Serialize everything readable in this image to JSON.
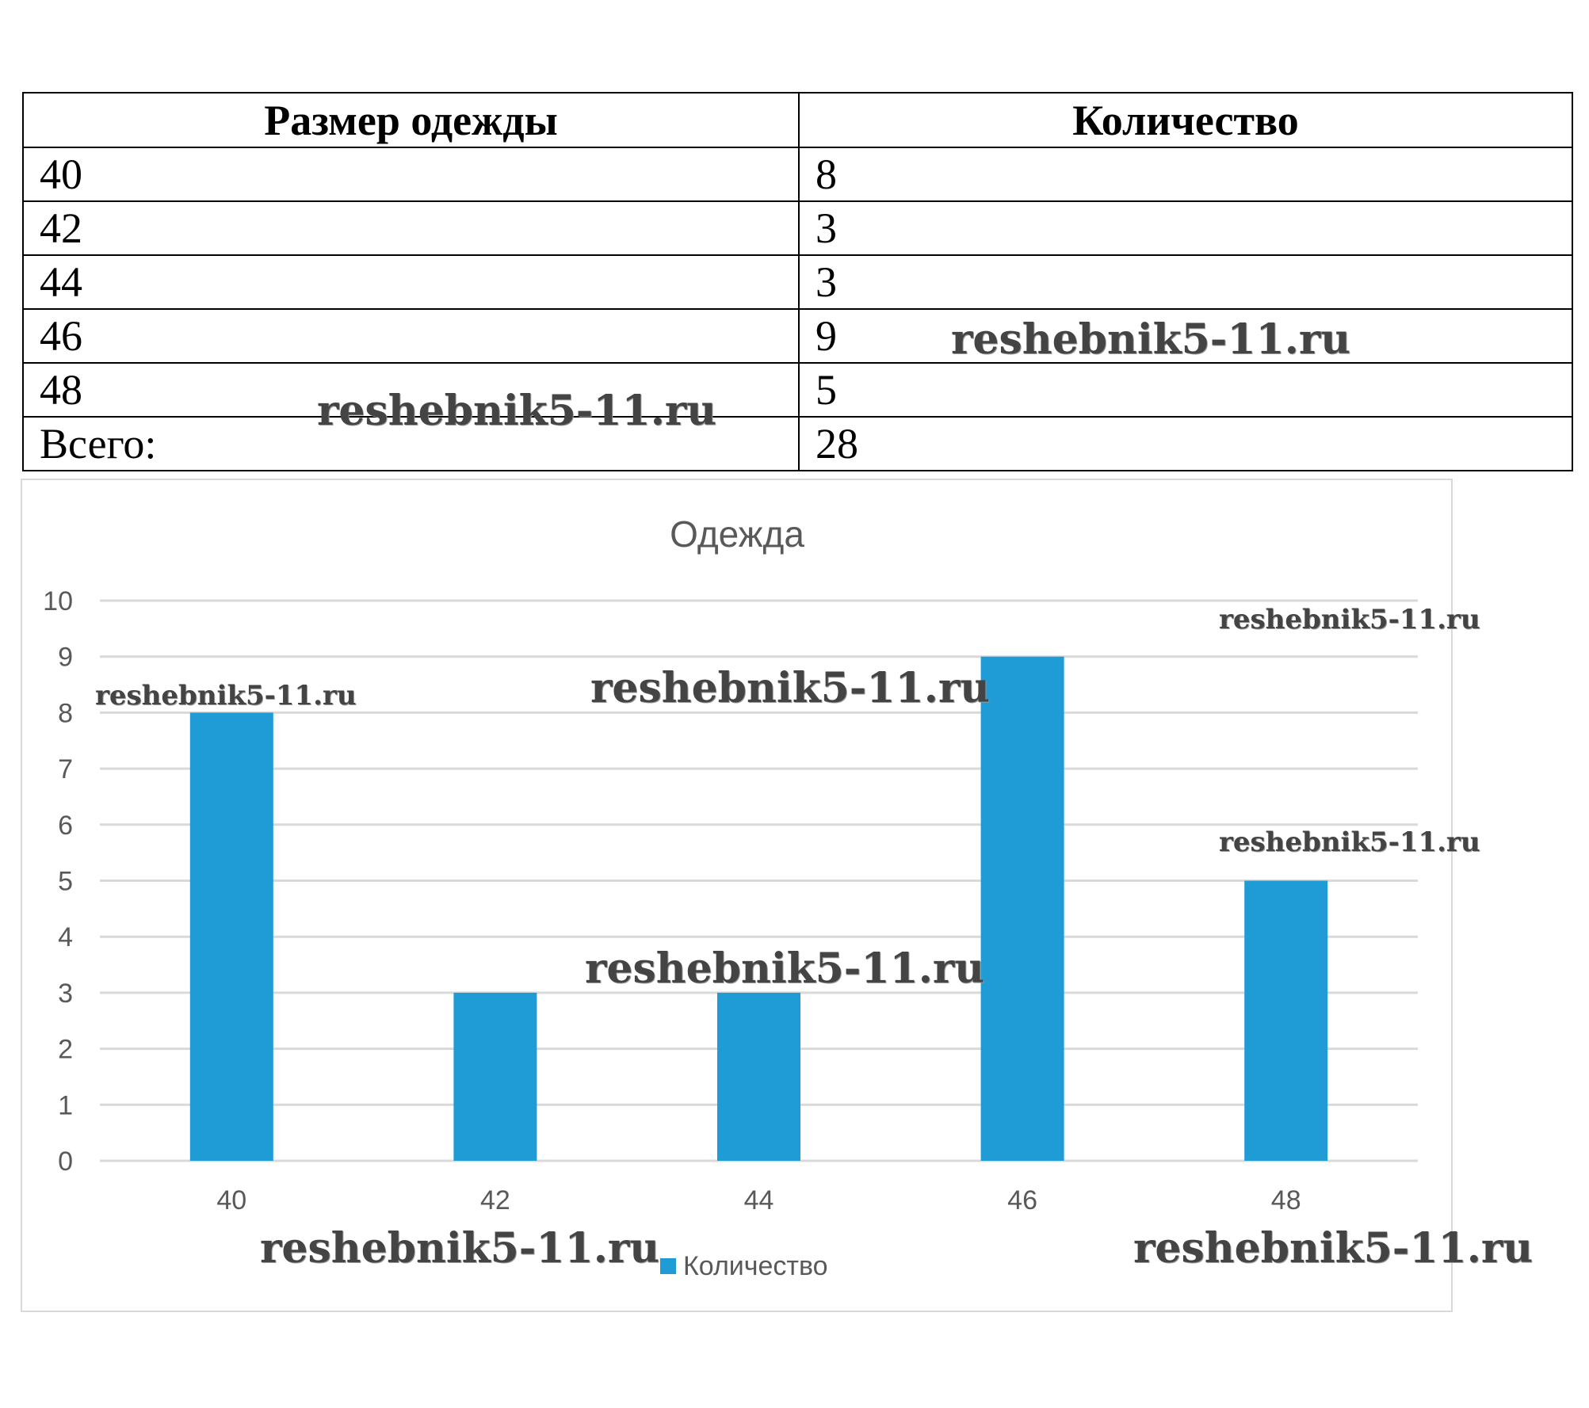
{
  "table": {
    "headers": [
      "Размер одежды",
      "Количество"
    ],
    "rows": [
      [
        "40",
        "8"
      ],
      [
        "42",
        "3"
      ],
      [
        "44",
        "3"
      ],
      [
        "46",
        "9"
      ],
      [
        "48",
        "5"
      ],
      [
        "Всего:",
        "28"
      ]
    ]
  },
  "chart_data": {
    "type": "bar",
    "title": "Одежда",
    "categories": [
      "40",
      "42",
      "44",
      "46",
      "48"
    ],
    "series": [
      {
        "name": "Количество",
        "values": [
          8,
          3,
          3,
          9,
          5
        ]
      }
    ],
    "ylim": [
      0,
      10
    ],
    "yticks": [
      0,
      1,
      2,
      3,
      4,
      5,
      6,
      7,
      8,
      9,
      10
    ],
    "grid": true,
    "legend": "bottom",
    "colors": {
      "bar": "#1f9bd5",
      "grid": "#d9d9d9",
      "text": "#595959"
    }
  },
  "watermark": "reshebnik5-11.ru"
}
